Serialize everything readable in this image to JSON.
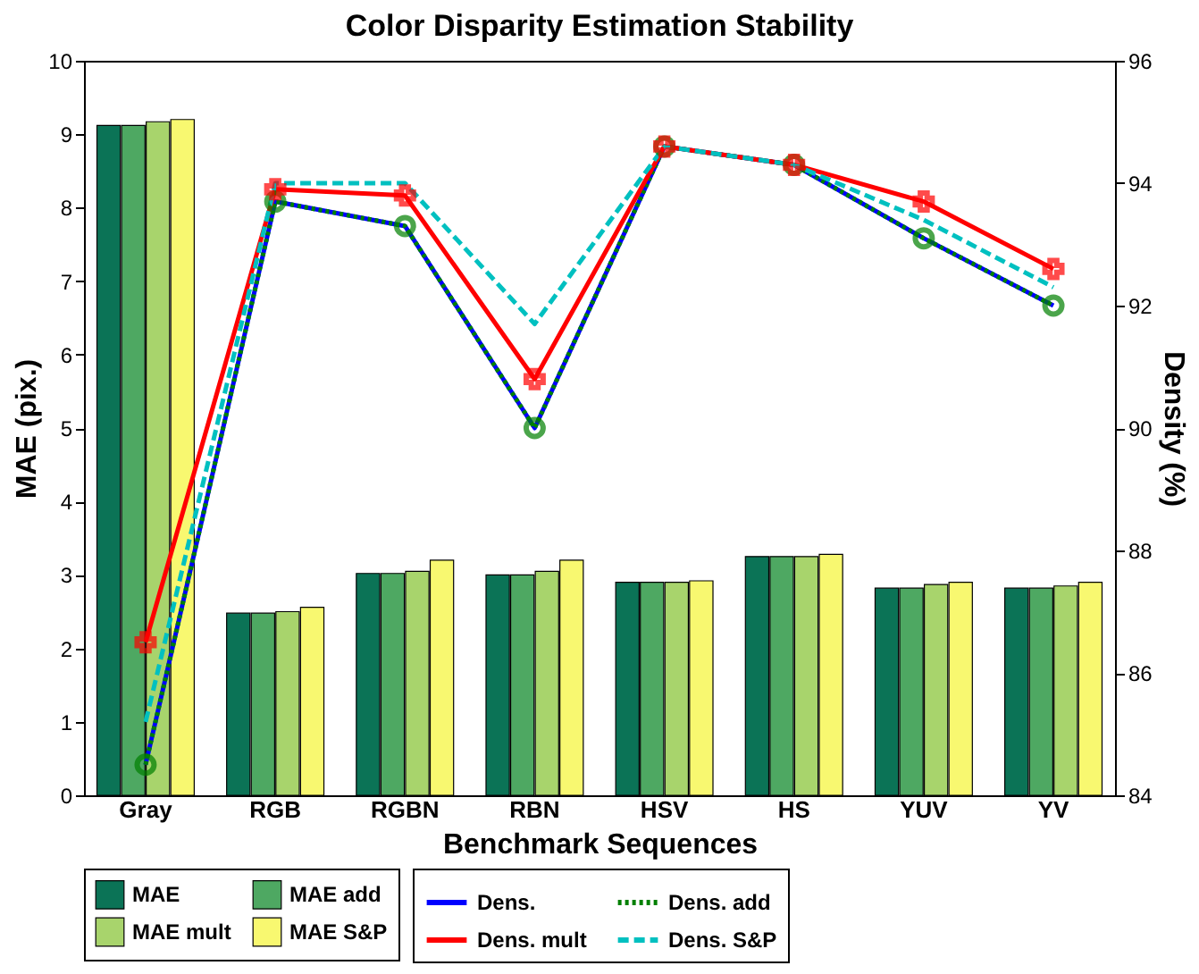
{
  "chart_data": {
    "type": "bar",
    "title": "Color Disparity Estimation Stability",
    "xlabel": "Benchmark Sequences",
    "ylabel": "MAE (pix.)",
    "y2label": "Density (%)",
    "categories": [
      "Gray",
      "RGB",
      "RGBN",
      "RBN",
      "HSV",
      "HS",
      "YUV",
      "YV"
    ],
    "ylim": [
      0,
      10
    ],
    "yticks": [
      0,
      1,
      2,
      3,
      4,
      5,
      6,
      7,
      8,
      9,
      10
    ],
    "y2lim": [
      84,
      96
    ],
    "y2ticks": [
      84,
      86,
      88,
      90,
      92,
      94,
      96
    ],
    "legend": "bottom",
    "series": [
      {
        "name": "MAE",
        "color": "#0b7356",
        "values": [
          9.12,
          2.48,
          3.02,
          3.0,
          2.9,
          3.25,
          2.82,
          2.82
        ]
      },
      {
        "name": "MAE add",
        "color": "#4ea862",
        "values": [
          9.12,
          2.48,
          3.02,
          3.0,
          2.9,
          3.25,
          2.82,
          2.82
        ]
      },
      {
        "name": "MAE mult",
        "color": "#a8d46c",
        "values": [
          9.17,
          2.5,
          3.05,
          3.05,
          2.9,
          3.25,
          2.87,
          2.85
        ]
      },
      {
        "name": "MAE S&P",
        "color": "#f8f870",
        "values": [
          9.2,
          2.56,
          3.2,
          3.2,
          2.92,
          3.28,
          2.9,
          2.9
        ]
      },
      {
        "name": "Dens.",
        "type": "line",
        "axis": "y2",
        "color": "#0000ff",
        "line_style": "solid",
        "marker": "none",
        "values": [
          84.5,
          93.7,
          93.3,
          90.0,
          94.6,
          94.3,
          93.1,
          92.0
        ]
      },
      {
        "name": "Dens. add",
        "type": "line",
        "axis": "y2",
        "color": "#008000",
        "line_style": "dotted",
        "marker": "circle",
        "values": [
          84.5,
          93.7,
          93.3,
          90.0,
          94.6,
          94.3,
          93.1,
          92.0
        ]
      },
      {
        "name": "Dens. mult",
        "type": "line",
        "axis": "y2",
        "color": "#ff0000",
        "line_style": "solid",
        "marker": "cross",
        "values": [
          86.5,
          93.9,
          93.8,
          90.8,
          94.6,
          94.3,
          93.7,
          92.6
        ]
      },
      {
        "name": "Dens. S&P",
        "type": "line",
        "axis": "y2",
        "color": "#00c0c0",
        "line_style": "dashed",
        "marker": "none",
        "values": [
          85.2,
          94.0,
          94.0,
          91.7,
          94.6,
          94.3,
          93.4,
          92.3
        ]
      }
    ]
  }
}
